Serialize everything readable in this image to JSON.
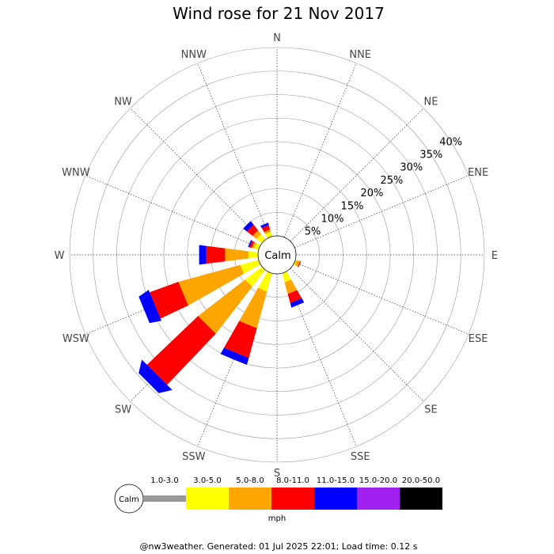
{
  "chart_data": {
    "type": "wind-rose",
    "title": "Wind rose for 21 Nov 2017",
    "directions": [
      "N",
      "NNE",
      "NE",
      "ENE",
      "E",
      "ESE",
      "SE",
      "SSE",
      "S",
      "SSW",
      "SW",
      "WSW",
      "W",
      "WNW",
      "NW",
      "NNW"
    ],
    "radial_ticks": [
      "5%",
      "10%",
      "15%",
      "20%",
      "25%",
      "30%",
      "35%",
      "40%"
    ],
    "radial_max": 40,
    "calm_label": "Calm",
    "speed_bins": [
      "1.0-3.0",
      "3.0-5.0",
      "5.0-8.0",
      "8.0-11.0",
      "11.0-15.0",
      "15.0-20.0",
      "20.0-50.0"
    ],
    "speed_colors": [
      "#999999",
      "#ffff00",
      "#ffa500",
      "#ff0000",
      "#0000ff",
      "#a020f0",
      "#000000"
    ],
    "units": "mph",
    "cumulative_percent": {
      "N": [
        0,
        0,
        0,
        0,
        0,
        0,
        0
      ],
      "NNE": [
        0,
        0,
        0,
        0,
        0,
        0,
        0
      ],
      "NE": [
        0,
        0,
        0,
        0,
        0,
        0,
        0
      ],
      "ENE": [
        0,
        0,
        0,
        0,
        0,
        0,
        0
      ],
      "E": [
        0,
        0,
        0,
        0,
        0,
        0,
        0
      ],
      "ESE": [
        0,
        0.3,
        1.0,
        1.2,
        1.2,
        1.2,
        1.2
      ],
      "SE": [
        0,
        0,
        0,
        0,
        0,
        0,
        0
      ],
      "SSE": [
        0,
        2.0,
        4.5,
        6.5,
        7.5,
        7.5,
        7.5
      ],
      "S": [
        0,
        0,
        0,
        0,
        0,
        0,
        0
      ],
      "SSW": [
        0,
        4.0,
        12.0,
        18.5,
        20.0,
        20.0,
        20.0
      ],
      "SW": [
        0,
        4.5,
        17.0,
        32.0,
        34.5,
        34.5,
        34.5
      ],
      "WSW": [
        0,
        4.0,
        17.5,
        24.0,
        26.5,
        26.5,
        26.5
      ],
      "W": [
        0,
        2.0,
        7.0,
        11.0,
        12.5,
        12.5,
        12.5
      ],
      "WNW": [
        0,
        1.0,
        1.5,
        2.0,
        2.3,
        2.3,
        2.3
      ],
      "NW": [
        0,
        1.5,
        2.5,
        4.0,
        5.0,
        5.0,
        5.0
      ],
      "NNW": [
        0,
        1.0,
        1.5,
        2.5,
        3.0,
        3.0,
        3.0
      ]
    }
  },
  "footer": "@nw3weather. Generated: 01 Jul 2025 22:01; Load time: 0.12 s"
}
